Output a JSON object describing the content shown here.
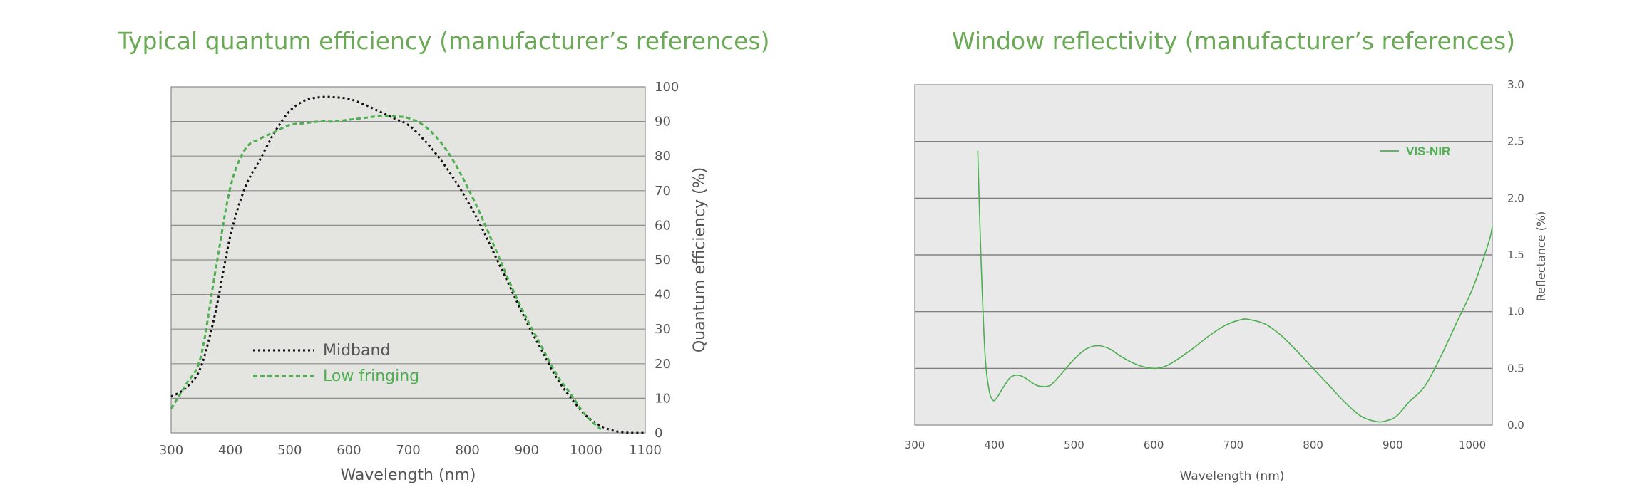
{
  "chart_data": [
    {
      "type": "line",
      "title": "Typical quantum efficiency (manufacturer’s references)",
      "xlabel": "Wavelength (nm)",
      "ylabel": "Quantum efficiency (%)",
      "xlim": [
        300,
        1100
      ],
      "ylim": [
        0,
        100
      ],
      "x_ticks": [
        "300",
        "400",
        "500",
        "600",
        "700",
        "800",
        "900",
        "1000",
        "1100"
      ],
      "y_ticks": [
        "0",
        "10",
        "20",
        "30",
        "40",
        "50",
        "60",
        "70",
        "80",
        "90",
        "100"
      ],
      "grid": true,
      "legend": "bottom-left",
      "series": [
        {
          "name": "Midband",
          "color": "#111111",
          "style": "dotted",
          "x": [
            300,
            325,
            350,
            375,
            400,
            425,
            450,
            475,
            500,
            525,
            550,
            575,
            600,
            625,
            650,
            675,
            700,
            725,
            750,
            775,
            800,
            825,
            850,
            875,
            900,
            925,
            950,
            975,
            1000,
            1025,
            1050,
            1075,
            1100
          ],
          "y": [
            10.5,
            13,
            19,
            35,
            57,
            71,
            79,
            87,
            93,
            96,
            97,
            97,
            96.5,
            95,
            93,
            91,
            89,
            85,
            80,
            74,
            67,
            59,
            50,
            41,
            32,
            24,
            16,
            10,
            5,
            2,
            0.5,
            0,
            0
          ]
        },
        {
          "name": "Low fringing",
          "color": "#4caf50",
          "style": "dashed",
          "x": [
            300,
            325,
            350,
            375,
            400,
            425,
            450,
            475,
            500,
            525,
            550,
            575,
            600,
            625,
            650,
            675,
            700,
            725,
            750,
            775,
            800,
            825,
            850,
            875,
            900,
            925,
            950,
            975,
            1000,
            1025
          ],
          "y": [
            7,
            14,
            22,
            47,
            71,
            82,
            85,
            87,
            89,
            89.5,
            90,
            90,
            90.5,
            91,
            91.5,
            91.5,
            91,
            89,
            85,
            79,
            71,
            62,
            52,
            42,
            33,
            25,
            17,
            11,
            5,
            1
          ]
        }
      ]
    },
    {
      "type": "line",
      "title": "Window reflectivity (manufacturer’s references)",
      "xlabel": "Wavelength (nm)",
      "ylabel": "Reflectance (%)",
      "xlim": [
        300,
        1025
      ],
      "ylim": [
        0,
        3.0
      ],
      "x_ticks": [
        "300",
        "400",
        "500",
        "600",
        "700",
        "800",
        "900",
        "1000"
      ],
      "y_ticks": [
        "0.0",
        "0.5",
        "1.0",
        "1.5",
        "2.0",
        "2.5",
        "3.0"
      ],
      "grid": true,
      "legend": "top-right",
      "series": [
        {
          "name": "VIS-NIR",
          "color": "#4caf50",
          "style": "solid",
          "x": [
            379,
            383,
            388,
            393,
            398,
            403,
            410,
            420,
            430,
            440,
            450,
            460,
            470,
            480,
            490,
            500,
            515,
            530,
            545,
            560,
            580,
            600,
            615,
            630,
            650,
            670,
            690,
            710,
            720,
            740,
            760,
            780,
            800,
            820,
            840,
            860,
            880,
            893,
            905,
            920,
            940,
            960,
            980,
            1000,
            1020,
            1025
          ],
          "y": [
            2.42,
            1.5,
            0.65,
            0.32,
            0.22,
            0.24,
            0.32,
            0.42,
            0.44,
            0.41,
            0.36,
            0.34,
            0.35,
            0.42,
            0.5,
            0.58,
            0.67,
            0.7,
            0.67,
            0.6,
            0.53,
            0.5,
            0.52,
            0.58,
            0.68,
            0.79,
            0.88,
            0.93,
            0.93,
            0.89,
            0.79,
            0.65,
            0.5,
            0.35,
            0.2,
            0.08,
            0.03,
            0.04,
            0.08,
            0.2,
            0.34,
            0.6,
            0.9,
            1.2,
            1.6,
            1.75
          ]
        }
      ]
    }
  ]
}
